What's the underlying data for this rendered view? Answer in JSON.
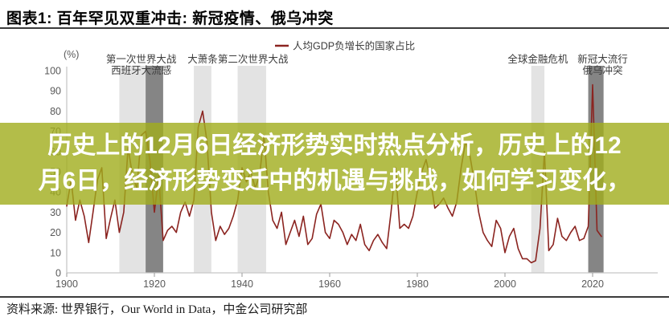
{
  "header": {
    "title": "图表1: 百年罕见双重冲击: 新冠疫情、俄乌冲突"
  },
  "overlay": {
    "line1": "历史上的12月6日经济形势实时热点分析，历史上的12",
    "line2": "月6日，经济形势变迁中的机遇与挑战，如何学习变化，",
    "background_color": "#a0ac1c",
    "background_opacity": 0.8,
    "text_color": "#ffffff"
  },
  "footer": {
    "source": "资料来源: 世界银行，Our World in Data，中金公司研究部"
  },
  "chart_data": {
    "type": "line",
    "legend": [
      {
        "label": "人均GDP负增长的国家占比",
        "color": "#8b2420"
      }
    ],
    "legend_position": "top-center",
    "unit_label": "(%)",
    "grid": false,
    "line_color": "#8b2420",
    "axis_color": "#c8c8c8",
    "tick_text_color": "#595959",
    "annotation_text_color": "#3d3d3d",
    "band_colors": {
      "light": "#e3e3e3",
      "dark": "#858585"
    },
    "ylim": [
      0,
      100
    ],
    "yticks": [
      0,
      10,
      20,
      30,
      40,
      50,
      60,
      70,
      80,
      90,
      100
    ],
    "xticks": [
      1900,
      1920,
      1940,
      1960,
      1980,
      2000,
      2020
    ],
    "xlim": [
      1900,
      2025
    ],
    "event_bands": [
      {
        "name": "wwi",
        "from": 1912,
        "to": 1918,
        "tone": "light"
      },
      {
        "name": "spanish-flu",
        "from": 1918,
        "to": 1922,
        "tone": "dark"
      },
      {
        "name": "great-depression",
        "from": 1929,
        "to": 1933,
        "tone": "light"
      },
      {
        "name": "wwii",
        "from": 1939,
        "to": 1945.5,
        "tone": "light"
      },
      {
        "name": "gfc",
        "from": 2006,
        "to": 2009,
        "tone": "light"
      },
      {
        "name": "covid",
        "from": 2019,
        "to": 2022.5,
        "tone": "dark"
      }
    ],
    "annotations": [
      {
        "name": "wwi-flu-label",
        "year": 1917,
        "lines": [
          "第一次世界大战",
          "西班牙大流感"
        ]
      },
      {
        "name": "depression-label",
        "year": 1931,
        "lines": [
          "大萧条"
        ]
      },
      {
        "name": "wwii-label",
        "year": 1942.5,
        "lines": [
          "第二次世界大战"
        ]
      },
      {
        "name": "gfc-label",
        "year": 2007.5,
        "lines": [
          "全球金融危机"
        ]
      },
      {
        "name": "covid-label",
        "year": 2022.3,
        "lines": [
          "新冠大流行",
          "俄乌冲突"
        ]
      }
    ],
    "series_name": "人均GDP负增长的国家占比",
    "years": {
      "start": 1900,
      "end": 2022,
      "step": 1
    },
    "values": [
      33,
      46,
      26,
      36,
      28,
      15,
      30,
      46,
      52,
      17,
      27,
      36,
      20,
      30,
      62,
      48,
      42,
      68,
      70,
      55,
      30,
      48,
      16,
      21,
      23,
      20,
      30,
      35,
      28,
      36,
      72,
      80,
      65,
      30,
      16,
      23,
      19,
      22,
      28,
      36,
      52,
      45,
      50,
      42,
      48,
      68,
      40,
      26,
      22,
      30,
      14,
      20,
      26,
      18,
      28,
      14,
      17,
      29,
      34,
      20,
      17,
      26,
      24,
      20,
      14,
      19,
      16,
      24,
      14,
      11,
      16,
      19,
      15,
      12,
      30,
      52,
      22,
      24,
      22,
      28,
      40,
      50,
      56,
      46,
      32,
      34,
      37,
      32,
      28,
      35,
      52,
      65,
      58,
      45,
      30,
      20,
      16,
      13,
      26,
      22,
      10,
      18,
      22,
      12,
      7,
      7,
      5,
      6,
      22,
      60,
      11,
      14,
      27,
      18,
      16,
      20,
      23,
      16,
      17,
      23,
      93,
      21,
      18
    ]
  }
}
